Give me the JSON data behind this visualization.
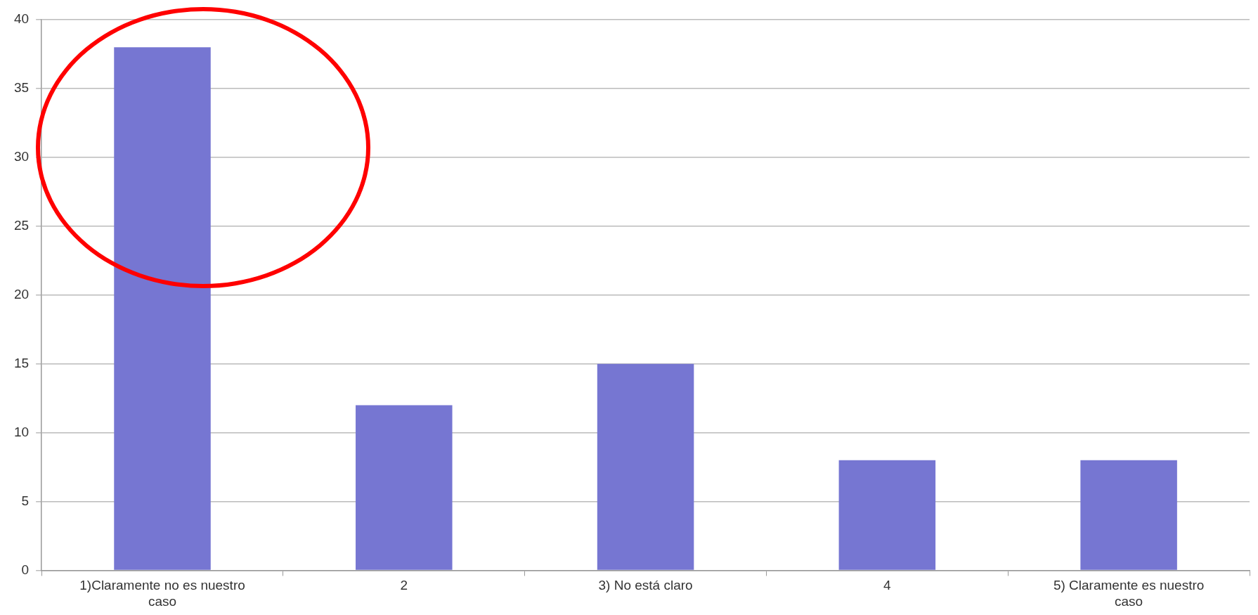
{
  "chart_data": {
    "type": "bar",
    "categories": [
      "1)Claramente no es nuestro caso",
      "2",
      "3) No está claro",
      "4",
      "5) Claramente es nuestro caso"
    ],
    "values": [
      38,
      12,
      15,
      8,
      8
    ],
    "color": "#7676d2",
    "ylim": [
      0,
      40
    ],
    "yticks": [
      0,
      5,
      10,
      15,
      20,
      25,
      30,
      35,
      40
    ],
    "grid": "y",
    "legend": false
  }
}
